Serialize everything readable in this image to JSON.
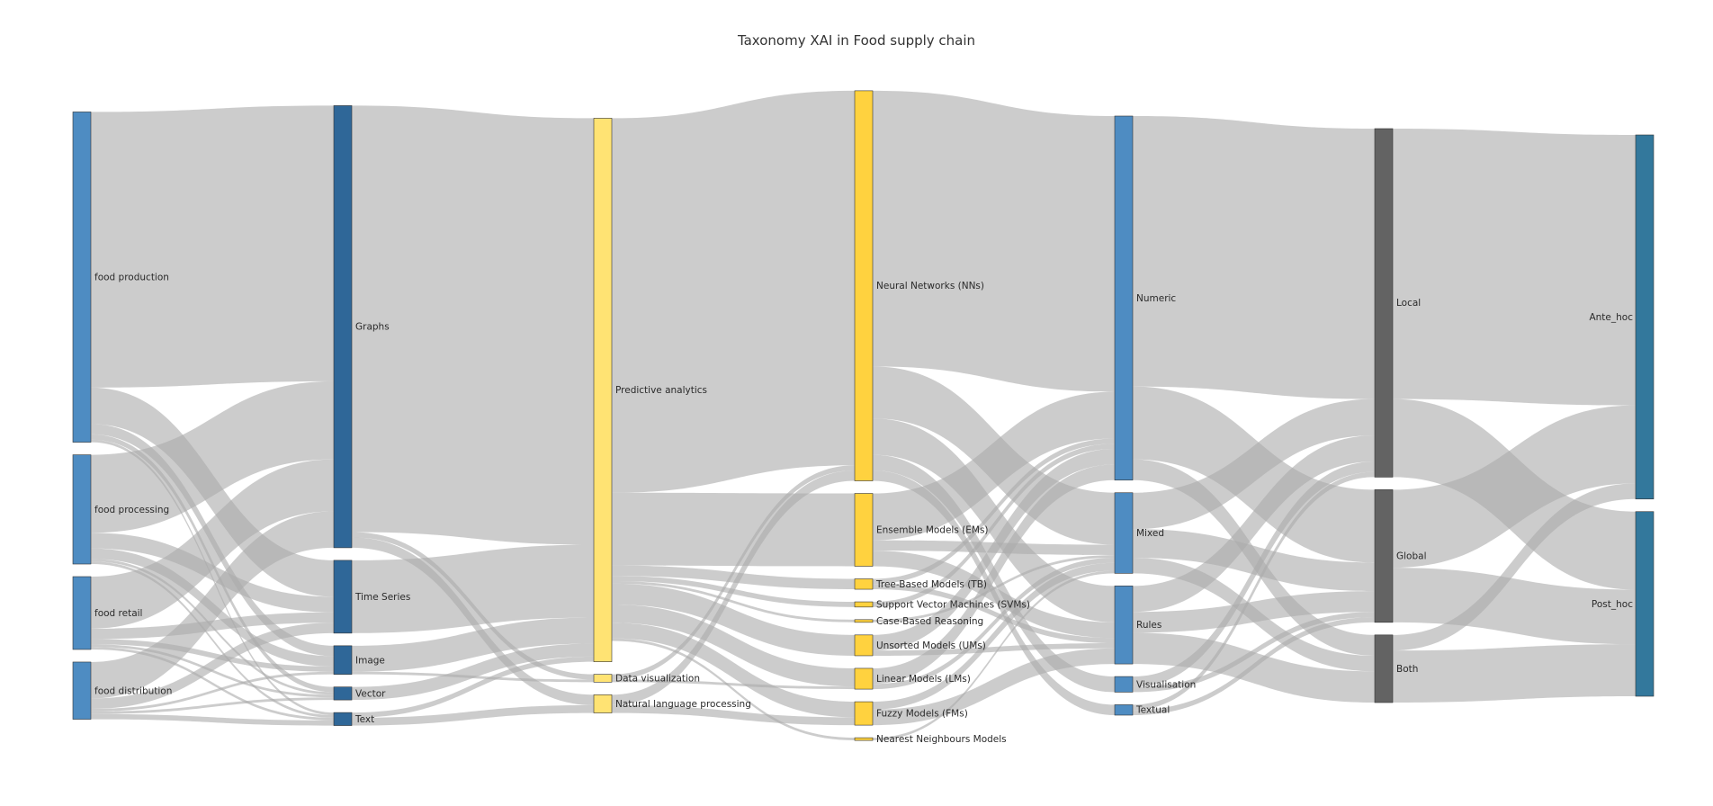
{
  "chart_data": {
    "type": "sankey",
    "title": "Taxonomy XAI in Food supply chain",
    "columns": [
      [
        {
          "id": "food_production",
          "label": "food production",
          "color": "#4e8cc2"
        },
        {
          "id": "food_processing",
          "label": "food processing",
          "color": "#4e8cc2"
        },
        {
          "id": "food_retail",
          "label": "food retail",
          "color": "#4e8cc2"
        },
        {
          "id": "food_distribution",
          "label": "food distribution",
          "color": "#4e8cc2"
        }
      ],
      [
        {
          "id": "graphs",
          "label": "Graphs",
          "color": "#2f6798"
        },
        {
          "id": "time_series",
          "label": "Time Series",
          "color": "#2f6798"
        },
        {
          "id": "image",
          "label": "Image",
          "color": "#2f6798"
        },
        {
          "id": "vector",
          "label": "Vector",
          "color": "#2f6798"
        },
        {
          "id": "text",
          "label": "Text",
          "color": "#2f6798"
        }
      ],
      [
        {
          "id": "predictive",
          "label": "Predictive analytics",
          "color": "#ffe373"
        },
        {
          "id": "data_vis",
          "label": "Data visualization",
          "color": "#ffe373"
        },
        {
          "id": "nlp",
          "label": "Natural language processing",
          "color": "#ffe373"
        }
      ],
      [
        {
          "id": "nn",
          "label": "Neural Networks (NNs)",
          "color": "#ffd23f"
        },
        {
          "id": "em",
          "label": "Ensemble Models (EMs)",
          "color": "#ffd23f"
        },
        {
          "id": "tb",
          "label": "Tree-Based Models (TB)",
          "color": "#ffd23f"
        },
        {
          "id": "svm",
          "label": "Support Vector Machines (SVMs)",
          "color": "#ffd23f"
        },
        {
          "id": "cbr",
          "label": "Case-Based Reasoning",
          "color": "#ffd23f"
        },
        {
          "id": "um",
          "label": "Unsorted Models (UMs)",
          "color": "#ffd23f"
        },
        {
          "id": "lm",
          "label": "Linear Models (LMs)",
          "color": "#ffd23f"
        },
        {
          "id": "fm",
          "label": "Fuzzy Models (FMs)",
          "color": "#ffd23f"
        },
        {
          "id": "nnm",
          "label": "Nearest Neighbours Models",
          "color": "#ffd23f"
        }
      ],
      [
        {
          "id": "numeric",
          "label": "Numeric",
          "color": "#4e8cc2"
        },
        {
          "id": "mixed",
          "label": "Mixed",
          "color": "#4e8cc2"
        },
        {
          "id": "rules",
          "label": "Rules",
          "color": "#4e8cc2"
        },
        {
          "id": "visualisation",
          "label": "Visualisation",
          "color": "#4e8cc2"
        },
        {
          "id": "textual",
          "label": "Textual",
          "color": "#4e8cc2"
        }
      ],
      [
        {
          "id": "local",
          "label": "Local",
          "color": "#636363"
        },
        {
          "id": "global",
          "label": "Global",
          "color": "#636363"
        },
        {
          "id": "both",
          "label": "Both",
          "color": "#636363"
        }
      ],
      [
        {
          "id": "ante",
          "label": "Ante_hoc",
          "color": "#33789c"
        },
        {
          "id": "post",
          "label": "Post_hoc",
          "color": "#33789c"
        }
      ]
    ],
    "links": [
      {
        "source": "food_production",
        "target": "graphs",
        "value": 53
      },
      {
        "source": "food_production",
        "target": "time_series",
        "value": 7
      },
      {
        "source": "food_production",
        "target": "image",
        "value": 2
      },
      {
        "source": "food_production",
        "target": "vector",
        "value": 1
      },
      {
        "source": "food_production",
        "target": "text",
        "value": 0.5
      },
      {
        "source": "food_processing",
        "target": "graphs",
        "value": 15
      },
      {
        "source": "food_processing",
        "target": "time_series",
        "value": 3
      },
      {
        "source": "food_processing",
        "target": "image",
        "value": 2
      },
      {
        "source": "food_processing",
        "target": "vector",
        "value": 0.5
      },
      {
        "source": "food_processing",
        "target": "text",
        "value": 0.5
      },
      {
        "source": "food_retail",
        "target": "graphs",
        "value": 10
      },
      {
        "source": "food_retail",
        "target": "time_series",
        "value": 2
      },
      {
        "source": "food_retail",
        "target": "image",
        "value": 1
      },
      {
        "source": "food_retail",
        "target": "vector",
        "value": 0.5
      },
      {
        "source": "food_retail",
        "target": "text",
        "value": 0.5
      },
      {
        "source": "food_distribution",
        "target": "graphs",
        "value": 7
      },
      {
        "source": "food_distribution",
        "target": "time_series",
        "value": 2
      },
      {
        "source": "food_distribution",
        "target": "image",
        "value": 0.5
      },
      {
        "source": "food_distribution",
        "target": "vector",
        "value": 0.5
      },
      {
        "source": "food_distribution",
        "target": "text",
        "value": 1
      },
      {
        "source": "graphs",
        "target": "predictive",
        "value": 82
      },
      {
        "source": "graphs",
        "target": "data_vis",
        "value": 1
      },
      {
        "source": "graphs",
        "target": "nlp",
        "value": 2
      },
      {
        "source": "time_series",
        "target": "predictive",
        "value": 14
      },
      {
        "source": "image",
        "target": "predictive",
        "value": 5
      },
      {
        "source": "image",
        "target": "data_vis",
        "value": 0.5
      },
      {
        "source": "vector",
        "target": "predictive",
        "value": 2.5
      },
      {
        "source": "text",
        "target": "predictive",
        "value": 1
      },
      {
        "source": "text",
        "target": "nlp",
        "value": 1.5
      },
      {
        "source": "predictive",
        "target": "nn",
        "value": 72
      },
      {
        "source": "predictive",
        "target": "em",
        "value": 14
      },
      {
        "source": "predictive",
        "target": "tb",
        "value": 2
      },
      {
        "source": "predictive",
        "target": "svm",
        "value": 1
      },
      {
        "source": "predictive",
        "target": "cbr",
        "value": 0.5
      },
      {
        "source": "predictive",
        "target": "um",
        "value": 4
      },
      {
        "source": "predictive",
        "target": "lm",
        "value": 3.5
      },
      {
        "source": "predictive",
        "target": "fm",
        "value": 3
      },
      {
        "source": "predictive",
        "target": "nnm",
        "value": 0.5
      },
      {
        "source": "data_vis",
        "target": "nn",
        "value": 1
      },
      {
        "source": "data_vis",
        "target": "lm",
        "value": 0.5
      },
      {
        "source": "nlp",
        "target": "nn",
        "value": 2
      },
      {
        "source": "nlp",
        "target": "fm",
        "value": 1.5
      },
      {
        "source": "nn",
        "target": "numeric",
        "value": 53
      },
      {
        "source": "nn",
        "target": "mixed",
        "value": 10
      },
      {
        "source": "nn",
        "target": "rules",
        "value": 7
      },
      {
        "source": "nn",
        "target": "visualisation",
        "value": 3
      },
      {
        "source": "nn",
        "target": "textual",
        "value": 2
      },
      {
        "source": "em",
        "target": "numeric",
        "value": 9
      },
      {
        "source": "em",
        "target": "mixed",
        "value": 2
      },
      {
        "source": "em",
        "target": "rules",
        "value": 3
      },
      {
        "source": "tb",
        "target": "numeric",
        "value": 1
      },
      {
        "source": "tb",
        "target": "rules",
        "value": 1
      },
      {
        "source": "svm",
        "target": "numeric",
        "value": 1
      },
      {
        "source": "cbr",
        "target": "mixed",
        "value": 0.5
      },
      {
        "source": "um",
        "target": "numeric",
        "value": 3
      },
      {
        "source": "um",
        "target": "rules",
        "value": 1
      },
      {
        "source": "lm",
        "target": "numeric",
        "value": 3
      },
      {
        "source": "lm",
        "target": "mixed",
        "value": 1
      },
      {
        "source": "fm",
        "target": "rules",
        "value": 3
      },
      {
        "source": "fm",
        "target": "mixed",
        "value": 1.5
      },
      {
        "source": "nnm",
        "target": "mixed",
        "value": 0.5
      },
      {
        "source": "numeric",
        "target": "local",
        "value": 52
      },
      {
        "source": "numeric",
        "target": "global",
        "value": 14
      },
      {
        "source": "numeric",
        "target": "both",
        "value": 4
      },
      {
        "source": "mixed",
        "target": "local",
        "value": 7
      },
      {
        "source": "mixed",
        "target": "global",
        "value": 5.5
      },
      {
        "source": "mixed",
        "target": "both",
        "value": 3
      },
      {
        "source": "rules",
        "target": "local",
        "value": 5
      },
      {
        "source": "rules",
        "target": "global",
        "value": 4
      },
      {
        "source": "rules",
        "target": "both",
        "value": 6
      },
      {
        "source": "visualisation",
        "target": "local",
        "value": 2
      },
      {
        "source": "visualisation",
        "target": "global",
        "value": 1
      },
      {
        "source": "textual",
        "target": "local",
        "value": 1
      },
      {
        "source": "textual",
        "target": "global",
        "value": 1
      },
      {
        "source": "local",
        "target": "ante",
        "value": 52
      },
      {
        "source": "local",
        "target": "post",
        "value": 15
      },
      {
        "source": "global",
        "target": "ante",
        "value": 15
      },
      {
        "source": "global",
        "target": "post",
        "value": 10.5
      },
      {
        "source": "both",
        "target": "ante",
        "value": 3
      },
      {
        "source": "both",
        "target": "post",
        "value": 10
      }
    ]
  }
}
